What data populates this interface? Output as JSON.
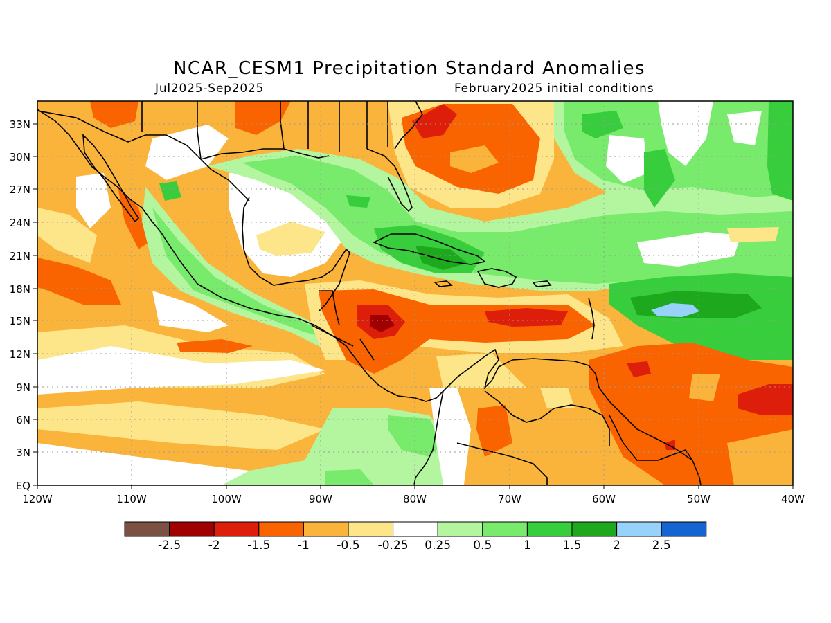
{
  "title": "NCAR_CESM1 Precipitation Standard Anomalies",
  "period": "Jul2025-Sep2025",
  "initial_conditions": "February2025 initial conditions",
  "lat_labels": [
    "EQ",
    "3N",
    "6N",
    "9N",
    "12N",
    "15N",
    "18N",
    "21N",
    "24N",
    "27N",
    "30N",
    "33N"
  ],
  "lon_labels": [
    "120W",
    "110W",
    "100W",
    "90W",
    "80W",
    "70W",
    "60W",
    "50W",
    "40W"
  ],
  "colorbar": {
    "colors": [
      "#7a5143",
      "#a00000",
      "#dc1e0a",
      "#fa6400",
      "#fab43c",
      "#fde68a",
      "#ffffff",
      "#b4f5a0",
      "#78ea6c",
      "#37cd3c",
      "#1ea81e",
      "#96d2fa",
      "#1464d2"
    ],
    "tick_labels": [
      "-2.5",
      "-2",
      "-1.5",
      "-1",
      "-0.5",
      "-0.25",
      "0.25",
      "0.5",
      "1",
      "1.5",
      "2",
      "2.5"
    ]
  },
  "colors": {
    "red_dark": "#a00000",
    "red": "#dc1e0a",
    "orange": "#fa6400",
    "light_orange": "#fab43c",
    "pale_yellow": "#fde68a",
    "white": "#ffffff",
    "pale_green": "#b4f5a0",
    "light_green": "#78ea6c",
    "green": "#37cd3c",
    "dark_green": "#1ea81e",
    "light_blue": "#96d2fa"
  }
}
